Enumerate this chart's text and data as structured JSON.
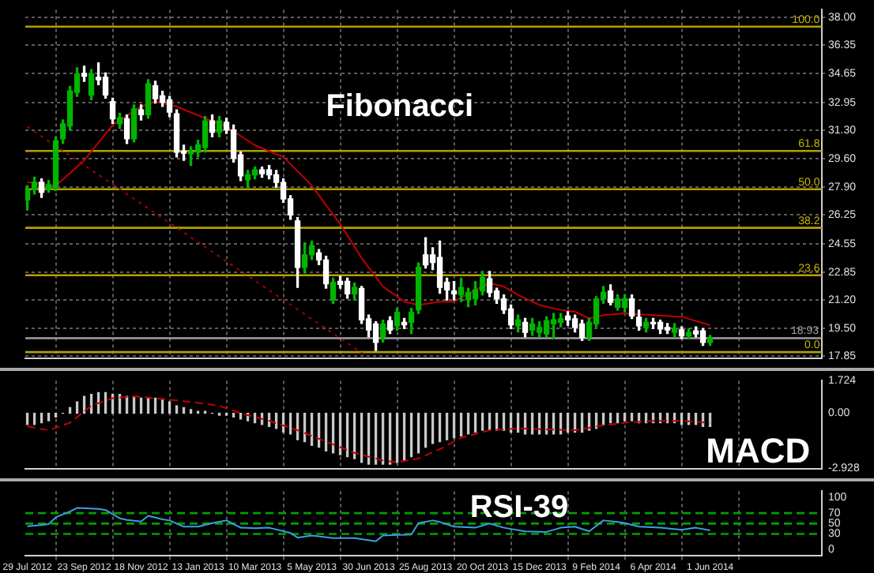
{
  "chart_data": [
    {
      "type": "candlestick",
      "title": "Fibonacci",
      "x": [
        "2012-07-29",
        "2012-08-05",
        "2012-08-12",
        "2012-08-19",
        "2012-08-26",
        "2012-09-02",
        "2012-09-09",
        "2012-09-16",
        "2012-09-23",
        "2012-09-30",
        "2012-10-07",
        "2012-10-14",
        "2012-10-21",
        "2012-10-28",
        "2012-11-04",
        "2012-11-11",
        "2012-11-18",
        "2012-11-25",
        "2012-12-02",
        "2012-12-09",
        "2012-12-16",
        "2012-12-23",
        "2012-12-30",
        "2013-01-06",
        "2013-01-13",
        "2013-01-20",
        "2013-01-27",
        "2013-02-03",
        "2013-02-10",
        "2013-02-17",
        "2013-02-24",
        "2013-03-03",
        "2013-03-10",
        "2013-03-17",
        "2013-03-24",
        "2013-03-31",
        "2013-04-07",
        "2013-04-14",
        "2013-04-21",
        "2013-04-28",
        "2013-05-05",
        "2013-05-12",
        "2013-05-19",
        "2013-05-26",
        "2013-06-02",
        "2013-06-09",
        "2013-06-16",
        "2013-06-23",
        "2013-06-30",
        "2013-07-07",
        "2013-07-14",
        "2013-07-21",
        "2013-07-28",
        "2013-08-04",
        "2013-08-11",
        "2013-08-18",
        "2013-08-25",
        "2013-09-01",
        "2013-09-08",
        "2013-09-15",
        "2013-09-22",
        "2013-09-29",
        "2013-10-06",
        "2013-10-13",
        "2013-10-20",
        "2013-10-27",
        "2013-11-03",
        "2013-11-10",
        "2013-11-17",
        "2013-11-24",
        "2013-12-01",
        "2013-12-08",
        "2013-12-15",
        "2013-12-22",
        "2013-12-29",
        "2014-01-05",
        "2014-01-12",
        "2014-01-19",
        "2014-01-26",
        "2014-02-02",
        "2014-02-09",
        "2014-02-16",
        "2014-02-23",
        "2014-03-02",
        "2014-03-09",
        "2014-03-16",
        "2014-03-23",
        "2014-03-30",
        "2014-04-06",
        "2014-04-13",
        "2014-04-20",
        "2014-04-27",
        "2014-05-04",
        "2014-05-11",
        "2014-05-18",
        "2014-05-25",
        "2014-06-01"
      ],
      "ohlc": [
        [
          27.15,
          28.0,
          26.55,
          27.75
        ],
        [
          27.75,
          28.5,
          27.5,
          28.2
        ],
        [
          28.2,
          28.4,
          27.3,
          27.6
        ],
        [
          27.75,
          28.3,
          27.6,
          28.05
        ],
        [
          27.9,
          30.9,
          27.7,
          30.66
        ],
        [
          30.78,
          31.9,
          30.5,
          31.67
        ],
        [
          31.55,
          33.9,
          31.3,
          33.63
        ],
        [
          33.54,
          35.0,
          33.3,
          34.64
        ],
        [
          34.67,
          35.1,
          34.2,
          34.5
        ],
        [
          33.39,
          34.9,
          33.1,
          34.64
        ],
        [
          34.44,
          35.3,
          34.0,
          34.29
        ],
        [
          34.44,
          34.7,
          33.2,
          33.39
        ],
        [
          33.0,
          33.2,
          31.7,
          31.97
        ],
        [
          31.67,
          32.3,
          31.4,
          32.03
        ],
        [
          31.97,
          32.2,
          30.5,
          30.78
        ],
        [
          30.78,
          32.8,
          30.6,
          32.56
        ],
        [
          32.5,
          32.8,
          31.9,
          32.21
        ],
        [
          32.21,
          34.3,
          32.0,
          34.05
        ],
        [
          33.93,
          34.2,
          32.9,
          33.16
        ],
        [
          33.34,
          33.6,
          32.7,
          32.95
        ],
        [
          33.1,
          33.3,
          32.1,
          32.36
        ],
        [
          32.27,
          32.5,
          29.7,
          29.98
        ],
        [
          30.04,
          30.4,
          29.5,
          29.92
        ],
        [
          29.89,
          30.3,
          29.2,
          30.01
        ],
        [
          29.98,
          30.7,
          29.7,
          30.42
        ],
        [
          30.27,
          32.1,
          30.0,
          31.85
        ],
        [
          31.85,
          32.2,
          30.9,
          31.17
        ],
        [
          31.17,
          32.1,
          30.9,
          31.85
        ],
        [
          31.76,
          32.0,
          31.1,
          31.31
        ],
        [
          31.31,
          31.6,
          29.4,
          29.62
        ],
        [
          29.83,
          30.0,
          28.3,
          28.58
        ],
        [
          28.34,
          28.9,
          27.9,
          28.64
        ],
        [
          28.64,
          29.1,
          28.4,
          28.94
        ],
        [
          28.94,
          29.1,
          28.5,
          28.7
        ],
        [
          28.94,
          29.2,
          28.4,
          28.64
        ],
        [
          28.64,
          28.9,
          27.9,
          28.19
        ],
        [
          28.19,
          28.4,
          27.0,
          27.21
        ],
        [
          27.21,
          27.4,
          26.0,
          26.26
        ],
        [
          25.9,
          26.1,
          21.95,
          23.14
        ],
        [
          23.14,
          24.6,
          22.8,
          23.88
        ],
        [
          23.88,
          24.7,
          23.6,
          24.42
        ],
        [
          24.0,
          24.2,
          23.3,
          23.58
        ],
        [
          23.58,
          23.8,
          21.9,
          22.16
        ],
        [
          21.21,
          22.5,
          21.0,
          22.25
        ],
        [
          22.31,
          22.6,
          21.9,
          22.13
        ],
        [
          22.31,
          22.5,
          21.3,
          21.56
        ],
        [
          21.56,
          22.2,
          21.2,
          21.95
        ],
        [
          21.89,
          22.0,
          19.8,
          20.02
        ],
        [
          20.08,
          20.3,
          19.0,
          19.42
        ],
        [
          19.78,
          19.9,
          18.2,
          18.68
        ],
        [
          18.98,
          20.0,
          18.7,
          19.78
        ],
        [
          19.96,
          20.2,
          19.2,
          19.42
        ],
        [
          19.66,
          20.7,
          19.4,
          20.46
        ],
        [
          19.87,
          20.1,
          19.5,
          19.72
        ],
        [
          19.87,
          20.7,
          19.2,
          20.46
        ],
        [
          20.61,
          23.4,
          20.4,
          23.14
        ],
        [
          23.88,
          24.9,
          23.1,
          23.29
        ],
        [
          23.88,
          24.3,
          23.0,
          23.43
        ],
        [
          23.73,
          24.7,
          21.6,
          21.95
        ],
        [
          22.25,
          22.5,
          21.2,
          21.8
        ],
        [
          21.74,
          22.3,
          21.2,
          21.56
        ],
        [
          21.5,
          22.5,
          21.1,
          21.95
        ],
        [
          21.21,
          21.9,
          20.8,
          21.65
        ],
        [
          21.27,
          22.3,
          20.9,
          21.8
        ],
        [
          21.74,
          22.9,
          21.5,
          22.54
        ],
        [
          22.46,
          22.9,
          21.4,
          21.65
        ],
        [
          21.74,
          21.9,
          21.0,
          21.27
        ],
        [
          21.27,
          21.5,
          20.4,
          20.61
        ],
        [
          20.67,
          20.9,
          19.5,
          19.72
        ],
        [
          19.66,
          20.3,
          19.3,
          20.02
        ],
        [
          19.87,
          20.1,
          19.0,
          19.27
        ],
        [
          19.42,
          20.1,
          19.1,
          19.78
        ],
        [
          19.27,
          19.9,
          19.0,
          19.57
        ],
        [
          19.18,
          20.2,
          19.0,
          19.96
        ],
        [
          19.78,
          20.4,
          18.9,
          20.02
        ],
        [
          19.87,
          20.4,
          19.6,
          20.08
        ],
        [
          20.25,
          20.5,
          19.7,
          20.02
        ],
        [
          20.08,
          20.3,
          19.3,
          19.57
        ],
        [
          19.78,
          20.0,
          18.8,
          18.98
        ],
        [
          18.98,
          20.1,
          18.8,
          19.87
        ],
        [
          19.78,
          21.4,
          19.6,
          21.27
        ],
        [
          21.27,
          22.0,
          21.0,
          21.65
        ],
        [
          21.74,
          22.1,
          20.9,
          21.06
        ],
        [
          20.76,
          21.5,
          20.6,
          21.27
        ],
        [
          20.76,
          21.5,
          20.5,
          21.27
        ],
        [
          21.27,
          21.5,
          20.1,
          20.25
        ],
        [
          20.17,
          20.6,
          19.4,
          19.66
        ],
        [
          19.57,
          20.1,
          19.3,
          19.87
        ],
        [
          19.87,
          20.1,
          19.5,
          19.78
        ],
        [
          19.87,
          20.0,
          19.2,
          19.48
        ],
        [
          19.57,
          19.8,
          19.2,
          19.42
        ],
        [
          19.27,
          19.8,
          19.0,
          19.48
        ],
        [
          19.42,
          19.6,
          18.9,
          19.07
        ],
        [
          19.07,
          19.5,
          18.9,
          19.27
        ],
        [
          19.36,
          19.6,
          19.0,
          19.18
        ],
        [
          19.36,
          19.5,
          18.5,
          18.68
        ],
        [
          18.68,
          19.1,
          18.5,
          18.93
        ]
      ],
      "colors": [
        "#00b400",
        "#00b400",
        "#ffffff",
        "#00b400",
        "#00b400",
        "#00b400",
        "#00b400",
        "#00b400",
        "#ffffff",
        "#00b400",
        "#ffffff",
        "#ffffff",
        "#ffffff",
        "#00b400",
        "#ffffff",
        "#00b400",
        "#ffffff",
        "#00b400",
        "#ffffff",
        "#ffffff",
        "#ffffff",
        "#ffffff",
        "#ffffff",
        "#00b400",
        "#00b400",
        "#00b400",
        "#ffffff",
        "#00b400",
        "#ffffff",
        "#ffffff",
        "#ffffff",
        "#00b400",
        "#00b400",
        "#ffffff",
        "#ffffff",
        "#ffffff",
        "#ffffff",
        "#ffffff",
        "#ffffff",
        "#00b400",
        "#00b400",
        "#ffffff",
        "#ffffff",
        "#00b400",
        "#ffffff",
        "#ffffff",
        "#00b400",
        "#ffffff",
        "#ffffff",
        "#ffffff",
        "#00b400",
        "#ffffff",
        "#00b400",
        "#ffffff",
        "#00b400",
        "#00b400",
        "#ffffff",
        "#ffffff",
        "#ffffff",
        "#ffffff",
        "#ffffff",
        "#00b400",
        "#00b400",
        "#00b400",
        "#00b400",
        "#ffffff",
        "#ffffff",
        "#ffffff",
        "#ffffff",
        "#00b400",
        "#ffffff",
        "#00b400",
        "#00b400",
        "#00b400",
        "#00b400",
        "#00b400",
        "#ffffff",
        "#ffffff",
        "#ffffff",
        "#00b400",
        "#00b400",
        "#00b400",
        "#ffffff",
        "#00b400",
        "#00b400",
        "#ffffff",
        "#ffffff",
        "#00b400",
        "#ffffff",
        "#ffffff",
        "#ffffff",
        "#00b400",
        "#ffffff",
        "#00b400",
        "#ffffff",
        "#ffffff",
        "#00b400"
      ],
      "series": [
        {
          "type": "line",
          "color": "#c00000",
          "x": [
            "2012-07-29",
            "2012-08-26",
            "2012-09-23",
            "2012-10-21",
            "2012-11-18",
            "2012-12-02",
            "2012-12-23",
            "2013-01-20",
            "2013-02-10",
            "2013-03-10",
            "2013-04-07",
            "2013-05-05",
            "2013-06-02",
            "2013-06-23",
            "2013-07-14",
            "2013-08-04",
            "2013-08-18",
            "2013-09-08",
            "2013-09-22",
            "2013-10-13",
            "2013-10-27",
            "2013-11-10",
            "2013-11-24",
            "2013-12-15",
            "2014-01-05",
            "2014-01-19",
            "2014-02-02",
            "2014-02-16",
            "2014-03-09",
            "2014-04-06",
            "2014-05-04",
            "2014-06-01"
          ],
          "values": [
            28.2,
            28.0,
            29.5,
            31.6,
            32.7,
            33.0,
            32.7,
            32.0,
            31.5,
            30.4,
            29.7,
            28.0,
            25.7,
            23.7,
            22.0,
            21.1,
            20.9,
            21.1,
            21.1,
            21.8,
            22.2,
            22.0,
            21.5,
            20.9,
            20.6,
            20.5,
            20.1,
            20.3,
            20.4,
            20.3,
            20.2,
            19.7
          ]
        },
        {
          "type": "line",
          "color": "#a00000",
          "line_style": "dotted",
          "x": [
            "2012-07-29",
            "2013-06-27"
          ],
          "values": [
            31.5,
            17.9
          ]
        }
      ],
      "annotations": [
        {
          "text": "100.0",
          "x": "2014-09-17",
          "y": 37.45
        },
        {
          "text": "61.8",
          "x": "2014-09-17",
          "y": 30.06
        },
        {
          "text": "50.0",
          "x": "2014-09-17",
          "y": 27.78
        },
        {
          "text": "38.2",
          "x": "2014-09-17",
          "y": 25.49
        },
        {
          "text": "23.6",
          "x": "2014-09-17",
          "y": 22.67
        },
        {
          "text": "0.0",
          "x": "2014-09-17",
          "y": 18.1
        }
      ],
      "ref_lines": [
        {
          "axis": "y",
          "value": 37.45,
          "color": "#b4a000"
        },
        {
          "axis": "y",
          "value": 30.06,
          "color": "#b4a000"
        },
        {
          "axis": "y",
          "value": 27.78,
          "color": "#b4a000"
        },
        {
          "axis": "y",
          "value": 25.49,
          "color": "#b4a000"
        },
        {
          "axis": "y",
          "value": 22.67,
          "color": "#b4a000"
        },
        {
          "axis": "y",
          "value": 18.1,
          "color": "#b4a000"
        },
        {
          "axis": "y",
          "value": 18.93,
          "label": "18.93",
          "color": "#a0a0a0"
        }
      ],
      "xlim": [
        "2012-07-27",
        "2014-09-19"
      ],
      "xticks": [
        {
          "value": "2012-07-29",
          "label": null
        },
        {
          "value": "2012-09-23",
          "label": null
        },
        {
          "value": "2012-11-18",
          "label": null
        },
        {
          "value": "2013-01-13",
          "label": null
        },
        {
          "value": "2013-03-10",
          "label": null
        },
        {
          "value": "2013-05-05",
          "label": null
        },
        {
          "value": "2013-06-30",
          "label": null
        },
        {
          "value": "2013-08-25",
          "label": null
        },
        {
          "value": "2013-10-20",
          "label": null
        },
        {
          "value": "2013-12-15",
          "label": null
        },
        {
          "value": "2014-02-09",
          "label": null
        },
        {
          "value": "2014-04-06",
          "label": null
        },
        {
          "value": "2014-06-01",
          "label": null
        }
      ],
      "ylim": [
        17.75,
        38.45
      ],
      "yticks": [
        {
          "value": 38,
          "label": "38.00"
        },
        36.35,
        34.65,
        32.95,
        {
          "value": 31.3,
          "label": "31.30"
        },
        {
          "value": 29.6,
          "label": "29.60"
        },
        {
          "value": 27.9,
          "label": "27.90"
        },
        26.25,
        24.55,
        22.85,
        {
          "value": 21.2,
          "label": "21.20"
        },
        {
          "value": 19.5,
          "label": "19.50"
        },
        17.85
      ],
      "grid": true,
      "tick_labels": "y",
      "marker": "none",
      "legend": false
    },
    {
      "type": "bar",
      "title": "MACD",
      "x": [
        "2012-07-29",
        "2012-08-05",
        "2012-08-12",
        "2012-08-19",
        "2012-08-26",
        "2012-09-02",
        "2012-09-09",
        "2012-09-16",
        "2012-09-23",
        "2012-09-30",
        "2012-10-07",
        "2012-10-14",
        "2012-10-21",
        "2012-10-28",
        "2012-11-04",
        "2012-11-11",
        "2012-11-18",
        "2012-11-25",
        "2012-12-02",
        "2012-12-09",
        "2012-12-16",
        "2012-12-23",
        "2012-12-30",
        "2013-01-06",
        "2013-01-13",
        "2013-01-20",
        "2013-01-27",
        "2013-02-03",
        "2013-02-10",
        "2013-02-17",
        "2013-02-24",
        "2013-03-03",
        "2013-03-10",
        "2013-03-17",
        "2013-03-24",
        "2013-03-31",
        "2013-04-07",
        "2013-04-14",
        "2013-04-21",
        "2013-04-28",
        "2013-05-05",
        "2013-05-12",
        "2013-05-19",
        "2013-05-26",
        "2013-06-02",
        "2013-06-09",
        "2013-06-16",
        "2013-06-23",
        "2013-06-30",
        "2013-07-07",
        "2013-07-14",
        "2013-07-21",
        "2013-07-28",
        "2013-08-04",
        "2013-08-11",
        "2013-08-18",
        "2013-08-25",
        "2013-09-01",
        "2013-09-08",
        "2013-09-15",
        "2013-09-22",
        "2013-09-29",
        "2013-10-06",
        "2013-10-13",
        "2013-10-20",
        "2013-10-27",
        "2013-11-03",
        "2013-11-10",
        "2013-11-17",
        "2013-11-24",
        "2013-12-01",
        "2013-12-08",
        "2013-12-15",
        "2013-12-22",
        "2013-12-29",
        "2014-01-05",
        "2014-01-12",
        "2014-01-19",
        "2014-01-26",
        "2014-02-02",
        "2014-02-09",
        "2014-02-16",
        "2014-02-23",
        "2014-03-02",
        "2014-03-09",
        "2014-03-16",
        "2014-03-23",
        "2014-03-30",
        "2014-04-06",
        "2014-04-13",
        "2014-04-20",
        "2014-04-27",
        "2014-05-04",
        "2014-05-11",
        "2014-05-18",
        "2014-05-25",
        "2014-06-01"
      ],
      "series": [
        {
          "type": "bar",
          "color": "#c8c8c8",
          "values": [
            -0.6,
            -0.6,
            -0.5,
            -0.4,
            -0.2,
            0.0,
            0.3,
            0.6,
            0.9,
            1.0,
            1.1,
            1.1,
            1.0,
            1.0,
            0.9,
            0.9,
            0.8,
            0.8,
            0.8,
            0.7,
            0.6,
            0.4,
            0.3,
            0.2,
            0.1,
            0.1,
            0.0,
            -0.1,
            -0.1,
            -0.2,
            -0.3,
            -0.4,
            -0.5,
            -0.6,
            -0.7,
            -0.8,
            -1.0,
            -1.1,
            -1.4,
            -1.5,
            -1.7,
            -1.8,
            -2.0,
            -2.1,
            -2.2,
            -2.3,
            -2.4,
            -2.6,
            -2.7,
            -2.7,
            -2.7,
            -2.7,
            -2.6,
            -2.5,
            -2.3,
            -2.1,
            -1.8,
            -1.6,
            -1.5,
            -1.4,
            -1.3,
            -1.2,
            -1.1,
            -1.0,
            -0.9,
            -0.9,
            -0.9,
            -0.9,
            -1.0,
            -1.0,
            -1.1,
            -1.1,
            -1.1,
            -1.1,
            -1.1,
            -1.1,
            -1.0,
            -1.0,
            -1.0,
            -0.9,
            -0.8,
            -0.6,
            -0.5,
            -0.5,
            -0.4,
            -0.4,
            -0.5,
            -0.5,
            -0.5,
            -0.5,
            -0.5,
            -0.5,
            -0.6,
            -0.6,
            -0.6,
            -0.7,
            -0.7
          ]
        },
        {
          "type": "line",
          "color": "#c00000",
          "line_style": "dashed",
          "x": [
            "2012-07-29",
            "2012-08-19",
            "2012-09-09",
            "2012-09-30",
            "2012-10-21",
            "2012-11-11",
            "2012-12-02",
            "2013-01-06",
            "2013-02-03",
            "2013-02-24",
            "2013-03-24",
            "2013-04-21",
            "2013-05-19",
            "2013-06-16",
            "2013-07-14",
            "2013-07-28",
            "2013-08-18",
            "2013-09-08",
            "2013-09-29",
            "2013-10-27",
            "2013-11-24",
            "2014-01-19",
            "2014-02-09",
            "2014-03-09",
            "2014-04-06",
            "2014-05-04",
            "2014-06-01"
          ],
          "values": [
            -0.7,
            -0.9,
            -0.5,
            0.4,
            0.8,
            0.9,
            0.8,
            0.6,
            0.4,
            0.0,
            -0.4,
            -0.9,
            -1.5,
            -2.1,
            -2.5,
            -2.6,
            -2.4,
            -1.9,
            -1.3,
            -0.9,
            -0.8,
            -0.9,
            -0.7,
            -0.5,
            -0.4,
            -0.4,
            -0.5
          ]
        }
      ],
      "xlim": [
        "2012-07-27",
        "2014-09-19"
      ],
      "xticks": [
        {
          "value": "2012-07-29",
          "label": null
        },
        {
          "value": "2012-09-23",
          "label": null
        },
        {
          "value": "2012-11-18",
          "label": null
        },
        {
          "value": "2013-01-13",
          "label": null
        },
        {
          "value": "2013-03-10",
          "label": null
        },
        {
          "value": "2013-05-05",
          "label": null
        },
        {
          "value": "2013-06-30",
          "label": null
        },
        {
          "value": "2013-08-25",
          "label": null
        },
        {
          "value": "2013-10-20",
          "label": null
        },
        {
          "value": "2013-12-15",
          "label": null
        },
        {
          "value": "2014-02-09",
          "label": null
        },
        {
          "value": "2014-04-06",
          "label": null
        },
        {
          "value": "2014-06-01",
          "label": null
        }
      ],
      "ylim": [
        -2.928,
        1.724
      ],
      "yticks": [
        1.724,
        {
          "value": 0,
          "label": "0.00"
        },
        -2.928
      ],
      "grid": "x",
      "tick_labels": "y",
      "marker": "none",
      "legend": false
    },
    {
      "type": "line",
      "title": "RSI-39",
      "series": [
        {
          "color": "#3aa0e0",
          "x": [
            "2012-07-29",
            "2012-08-12",
            "2012-08-19",
            "2012-08-26",
            "2012-09-09",
            "2012-09-16",
            "2012-10-07",
            "2012-10-14",
            "2012-10-28",
            "2012-11-04",
            "2012-11-18",
            "2012-11-25",
            "2012-12-09",
            "2012-12-16",
            "2012-12-30",
            "2013-01-13",
            "2013-01-27",
            "2013-02-10",
            "2013-02-24",
            "2013-03-10",
            "2013-03-24",
            "2013-04-14",
            "2013-04-21",
            "2013-05-05",
            "2013-05-26",
            "2013-06-16",
            "2013-06-30",
            "2013-07-07",
            "2013-07-14",
            "2013-08-11",
            "2013-08-18",
            "2013-09-01",
            "2013-09-08",
            "2013-09-22",
            "2013-10-13",
            "2013-10-27",
            "2013-11-10",
            "2013-12-01",
            "2013-12-22",
            "2014-01-05",
            "2014-01-19",
            "2014-02-02",
            "2014-02-16",
            "2014-03-02",
            "2014-03-09",
            "2014-03-23",
            "2014-04-13",
            "2014-05-04",
            "2014-05-18",
            "2014-06-01"
          ],
          "values": [
            45,
            47,
            49,
            62,
            73,
            80,
            78,
            76,
            60,
            57,
            54,
            65,
            58,
            56,
            44,
            44,
            51,
            56,
            42,
            41,
            42,
            32,
            23,
            27,
            22,
            22,
            18,
            16,
            27,
            29,
            51,
            56,
            53,
            44,
            42,
            50,
            42,
            35,
            34,
            42,
            44,
            35,
            56,
            53,
            51,
            44,
            42,
            38,
            42,
            37
          ]
        }
      ],
      "ref_lines": [
        {
          "axis": "y",
          "value": 70,
          "color": "#00a000",
          "line_style": "dashed"
        },
        {
          "axis": "y",
          "value": 50,
          "color": "#00a000",
          "line_style": "dashed"
        },
        {
          "axis": "y",
          "value": 30,
          "color": "#00a000",
          "line_style": "dashed"
        }
      ],
      "xlim": [
        "2012-07-27",
        "2014-09-19"
      ],
      "xticks": [
        {
          "value": "2012-07-29",
          "label": "29 Jul 2012"
        },
        {
          "value": "2012-09-23",
          "label": "23 Sep 2012"
        },
        {
          "value": "2012-11-18",
          "label": "18 Nov 2012"
        },
        {
          "value": "2013-01-13",
          "label": "13 Jan 2013"
        },
        {
          "value": "2013-03-10",
          "label": "10 Mar 2013"
        },
        {
          "value": "2013-05-05",
          "label": "5 May 2013"
        },
        {
          "value": "2013-06-30",
          "label": "30 Jun 2013"
        },
        {
          "value": "2013-08-25",
          "label": "25 Aug 2013"
        },
        {
          "value": "2013-10-20",
          "label": "20 Oct 2013"
        },
        {
          "value": "2013-12-15",
          "label": "15 Dec 2013"
        },
        {
          "value": "2014-02-09",
          "label": "9 Feb 2014"
        },
        {
          "value": "2014-04-06",
          "label": "6 Apr 2014"
        },
        {
          "value": "2014-06-01",
          "label": "1 Jun 2014"
        }
      ],
      "ylim": [
        -11,
        112
      ],
      "yticks": [
        100,
        70,
        50,
        30,
        0
      ],
      "grid": "x",
      "marker": "none",
      "legend": false
    }
  ]
}
